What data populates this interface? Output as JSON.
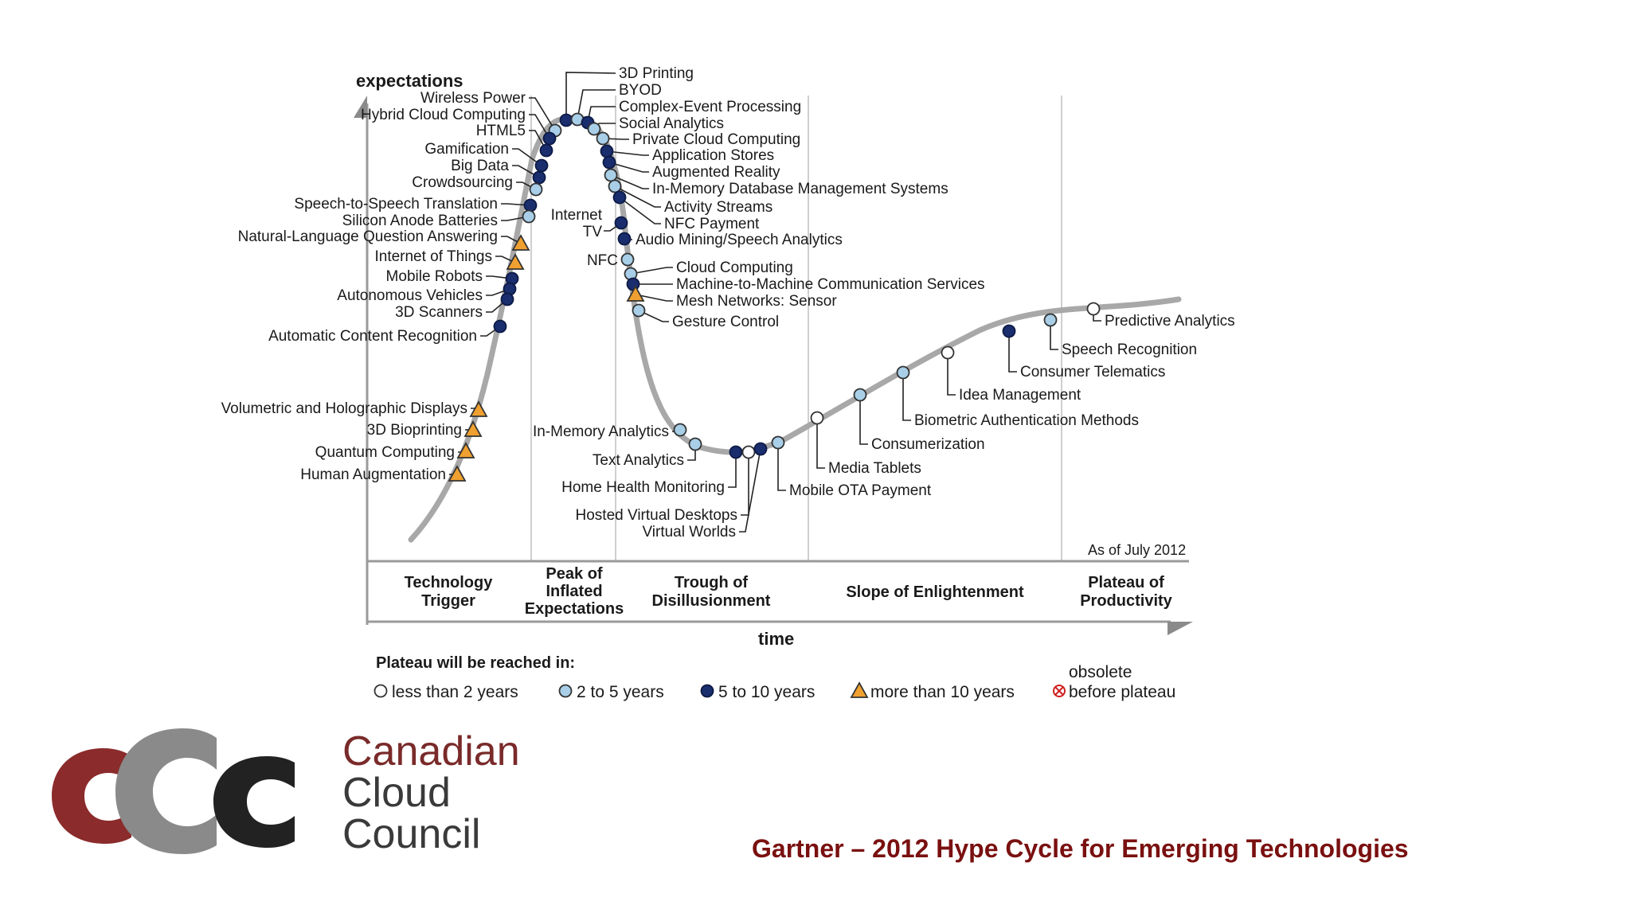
{
  "title": "Gartner – 2012 Hype Cycle for Emerging Technologies",
  "logo": {
    "lines": [
      "Canadian",
      "Cloud",
      "Council"
    ],
    "colors": {
      "dark_red": "#8b2b2b",
      "gray": "#7a7a7a",
      "black": "#222222"
    }
  },
  "chart": {
    "y_axis_label": "expectations",
    "x_axis_label": "time",
    "as_of": "As of July 2012",
    "phases": [
      {
        "label": "Technology Trigger"
      },
      {
        "label": "Peak of Inflated Expectations"
      },
      {
        "label": "Trough of Disillusionment"
      },
      {
        "label": "Slope of Enlightenment"
      },
      {
        "label": "Plateau of Productivity"
      }
    ],
    "legend": {
      "title": "Plateau will be reached in:",
      "items": [
        {
          "key": "lt2",
          "label": "less than 2 years",
          "color": "#ffffff"
        },
        {
          "key": "2to5",
          "label": "2 to 5 years",
          "color": "#a9cfe8"
        },
        {
          "key": "5to10",
          "label": "5 to 10 years",
          "color": "#1a2e6e"
        },
        {
          "key": "gt10",
          "label": "more than 10 years",
          "color": "#f0a030"
        },
        {
          "key": "obsolete",
          "label": "obsolete before plateau",
          "color": "#d02020"
        }
      ]
    },
    "technologies": [
      {
        "name": "3D Printing",
        "category": "5to10"
      },
      {
        "name": "BYOD",
        "category": "2to5"
      },
      {
        "name": "Complex-Event Processing",
        "category": "5to10"
      },
      {
        "name": "Social Analytics",
        "category": "2to5"
      },
      {
        "name": "Private Cloud Computing",
        "category": "2to5"
      },
      {
        "name": "Application Stores",
        "category": "5to10"
      },
      {
        "name": "Augmented Reality",
        "category": "5to10"
      },
      {
        "name": "In-Memory Database Management Systems",
        "category": "2to5"
      },
      {
        "name": "Activity Streams",
        "category": "2to5"
      },
      {
        "name": "NFC Payment",
        "category": "5to10"
      },
      {
        "name": "Audio Mining/Speech Analytics",
        "category": "5to10"
      },
      {
        "name": "Internet TV",
        "category": "5to10"
      },
      {
        "name": "NFC",
        "category": "2to5"
      },
      {
        "name": "Cloud Computing",
        "category": "2to5"
      },
      {
        "name": "Machine-to-Machine Communication Services",
        "category": "5to10"
      },
      {
        "name": "Mesh Networks: Sensor",
        "category": "gt10"
      },
      {
        "name": "Gesture Control",
        "category": "2to5"
      },
      {
        "name": "Wireless Power",
        "category": "2to5"
      },
      {
        "name": "Hybrid Cloud Computing",
        "category": "5to10"
      },
      {
        "name": "HTML5",
        "category": "5to10"
      },
      {
        "name": "Gamification",
        "category": "5to10"
      },
      {
        "name": "Big Data",
        "category": "5to10"
      },
      {
        "name": "Crowdsourcing",
        "category": "2to5"
      },
      {
        "name": "Speech-to-Speech Translation",
        "category": "5to10"
      },
      {
        "name": "Silicon Anode Batteries",
        "category": "2to5"
      },
      {
        "name": "Natural-Language Question Answering",
        "category": "gt10"
      },
      {
        "name": "Internet of Things",
        "category": "gt10"
      },
      {
        "name": "Mobile Robots",
        "category": "5to10"
      },
      {
        "name": "Autonomous Vehicles",
        "category": "5to10"
      },
      {
        "name": "3D Scanners",
        "category": "5to10"
      },
      {
        "name": "Automatic Content Recognition",
        "category": "5to10"
      },
      {
        "name": "Volumetric and Holographic Displays",
        "category": "gt10"
      },
      {
        "name": "3D Bioprinting",
        "category": "gt10"
      },
      {
        "name": "Quantum Computing",
        "category": "gt10"
      },
      {
        "name": "Human Augmentation",
        "category": "gt10"
      },
      {
        "name": "In-Memory Analytics",
        "category": "2to5"
      },
      {
        "name": "Text Analytics",
        "category": "2to5"
      },
      {
        "name": "Home Health Monitoring",
        "category": "5to10"
      },
      {
        "name": "Hosted Virtual Desktops",
        "category": "lt2"
      },
      {
        "name": "Virtual Worlds",
        "category": "5to10"
      },
      {
        "name": "Mobile OTA Payment",
        "category": "2to5"
      },
      {
        "name": "Media Tablets",
        "category": "lt2"
      },
      {
        "name": "Consumerization",
        "category": "2to5"
      },
      {
        "name": "Biometric Authentication Methods",
        "category": "2to5"
      },
      {
        "name": "Idea Management",
        "category": "lt2"
      },
      {
        "name": "Consumer Telematics",
        "category": "5to10"
      },
      {
        "name": "Speech Recognition",
        "category": "2to5"
      },
      {
        "name": "Predictive Analytics",
        "category": "lt2"
      }
    ]
  }
}
